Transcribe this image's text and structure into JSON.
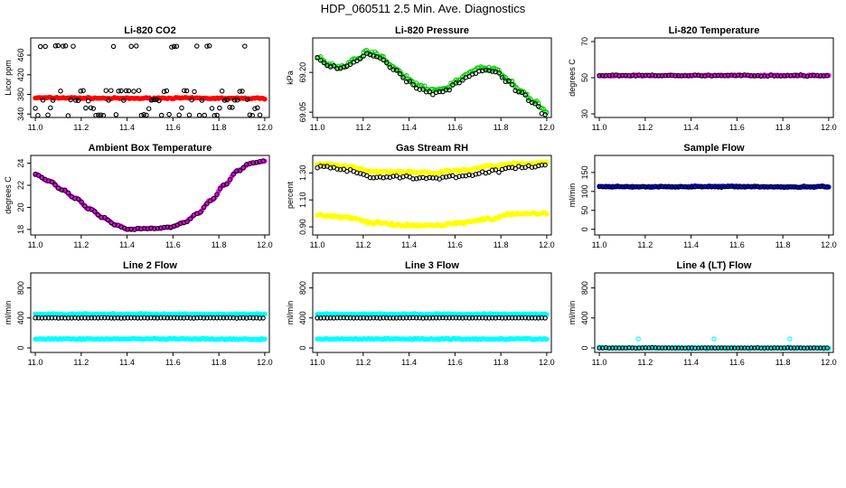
{
  "title": "HDP_060511  2.5 Min. Ave. Diagnostics",
  "colors": {
    "black": "#000000",
    "red": "#ff0000",
    "green": "#00cc00",
    "magenta": "#ff00ff",
    "yellow": "#ffff00",
    "blue": "#0000ff",
    "cyan": "#00ffff"
  },
  "chart_data": [
    {
      "type": "scatter",
      "title": "Li-820 CO2",
      "xlabel": "",
      "ylabel": "Licor ppm",
      "xlim": [
        11.0,
        12.0
      ],
      "ylim": [
        333,
        495
      ],
      "x_ticks": [
        "11.0",
        "11.2",
        "11.4",
        "11.6",
        "11.8",
        "12.0"
      ],
      "y_ticks": [
        340,
        380,
        420,
        460
      ],
      "series": [
        {
          "color": "red",
          "points": "dense",
          "shape": "constant",
          "values": [
            373,
            373,
            372.5,
            372,
            372,
            372.5,
            372.5,
            372,
            372,
            372
          ]
        },
        {
          "color": "black",
          "points": "sparse",
          "shape": "levels",
          "values": [
            338,
            352,
            368,
            387,
            478
          ]
        }
      ]
    },
    {
      "type": "scatter",
      "title": "Li-820 Pressure",
      "xlabel": "",
      "ylabel": "kPa",
      "xlim": [
        11.0,
        12.0
      ],
      "ylim": [
        69.03,
        69.33
      ],
      "x_ticks": [
        "11.0",
        "11.2",
        "11.4",
        "11.6",
        "11.8",
        "12.0"
      ],
      "y_ticks": [
        69.05,
        69.2
      ],
      "series": [
        {
          "color": "green",
          "values": [
            69.26,
            69.23,
            69.22,
            69.25,
            69.28,
            69.26,
            69.22,
            69.18,
            69.15,
            69.13,
            69.14,
            69.17,
            69.2,
            69.22,
            69.21,
            69.17,
            69.13,
            69.09,
            69.05
          ]
        },
        {
          "color": "black",
          "values": [
            69.25,
            69.22,
            69.22,
            69.24,
            69.27,
            69.25,
            69.21,
            69.17,
            69.14,
            69.12,
            69.13,
            69.16,
            69.19,
            69.21,
            69.2,
            69.16,
            69.12,
            69.08,
            69.04
          ]
        }
      ]
    },
    {
      "type": "scatter",
      "title": "Li-820 Temperature",
      "xlabel": "",
      "ylabel": "degrees C",
      "xlim": [
        11.0,
        12.0
      ],
      "ylim": [
        28,
        72
      ],
      "x_ticks": [
        "11.0",
        "11.2",
        "11.4",
        "11.6",
        "11.8",
        "12.0"
      ],
      "y_ticks": [
        30,
        50,
        70
      ],
      "series": [
        {
          "color": "magenta",
          "values": [
            51.2,
            51.2,
            51.2,
            51.2,
            51.2,
            51.2
          ]
        },
        {
          "color": "black",
          "values": [
            51.2,
            51.2,
            51.2,
            51.2,
            51.2,
            51.2
          ]
        }
      ]
    },
    {
      "type": "scatter",
      "title": "Ambient Box Temperature",
      "xlabel": "",
      "ylabel": "degrees C",
      "xlim": [
        11.0,
        12.0
      ],
      "ylim": [
        17.5,
        24.7
      ],
      "x_ticks": [
        "11.0",
        "11.2",
        "11.4",
        "11.6",
        "11.8",
        "12.0"
      ],
      "y_ticks": [
        18,
        20,
        22,
        24
      ],
      "series": [
        {
          "color": "magenta",
          "values": [
            23.0,
            22.4,
            21.6,
            20.8,
            19.9,
            19.1,
            18.4,
            18.0,
            18.1,
            18.1,
            18.2,
            18.6,
            19.4,
            20.6,
            22.0,
            23.3,
            24.0,
            24.2
          ]
        },
        {
          "color": "black",
          "values": [
            23.0,
            22.4,
            21.6,
            20.8,
            19.9,
            19.1,
            18.4,
            18.0,
            18.1,
            18.1,
            18.2,
            18.6,
            19.4,
            20.6,
            22.0,
            23.3,
            24.0,
            24.2
          ]
        }
      ]
    },
    {
      "type": "scatter",
      "title": "Gas Stream RH",
      "xlabel": "",
      "ylabel": "percent",
      "xlim": [
        11.0,
        12.0
      ],
      "ylim": [
        0.84,
        1.43
      ],
      "x_ticks": [
        "11.0",
        "11.2",
        "11.4",
        "11.6",
        "11.8",
        "12.0"
      ],
      "y_ticks": [
        0.9,
        1.1,
        1.3
      ],
      "series": [
        {
          "color": "yellow",
          "name": "",
          "values": [
            1.37,
            1.35,
            1.31,
            1.31,
            1.3,
            1.32,
            1.35,
            1.37,
            1.38
          ]
        },
        {
          "color": "black",
          "name": "",
          "values": [
            1.35,
            1.32,
            1.27,
            1.27,
            1.26,
            1.28,
            1.31,
            1.34,
            1.35
          ]
        },
        {
          "color": "yellow",
          "name": "",
          "values": [
            0.99,
            0.97,
            0.93,
            0.91,
            0.91,
            0.93,
            0.96,
            1.0,
            1.0
          ]
        }
      ]
    },
    {
      "type": "scatter",
      "title": "Sample Flow",
      "xlabel": "",
      "ylabel": "ml/min",
      "xlim": [
        11.0,
        12.0
      ],
      "ylim": [
        -15,
        195
      ],
      "x_ticks": [
        "11.0",
        "11.2",
        "11.4",
        "11.6",
        "11.8",
        "12.0"
      ],
      "y_ticks": [
        0,
        50,
        100,
        150
      ],
      "series": [
        {
          "color": "blue",
          "values": [
            113,
            112,
            113,
            113,
            112,
            113
          ]
        },
        {
          "color": "black",
          "values": [
            112,
            112,
            112,
            112,
            112,
            112
          ]
        }
      ]
    },
    {
      "type": "scatter",
      "title": "Line 2 Flow",
      "xlabel": "",
      "ylabel": "ml/min",
      "xlim": [
        11.0,
        12.0
      ],
      "ylim": [
        -60,
        1000
      ],
      "x_ticks": [
        "11.0",
        "11.2",
        "11.4",
        "11.6",
        "11.8",
        "12.0"
      ],
      "y_ticks": [
        0,
        400,
        800
      ],
      "series": [
        {
          "color": "cyan",
          "values": [
            450,
            450,
            450
          ]
        },
        {
          "color": "black",
          "values": [
            400,
            400,
            400
          ]
        },
        {
          "color": "cyan",
          "values": [
            120,
            120,
            115
          ]
        }
      ]
    },
    {
      "type": "scatter",
      "title": "Line 3 Flow",
      "xlabel": "",
      "ylabel": "ml/min",
      "xlim": [
        11.0,
        12.0
      ],
      "ylim": [
        -60,
        1000
      ],
      "x_ticks": [
        "11.0",
        "11.2",
        "11.4",
        "11.6",
        "11.8",
        "12.0"
      ],
      "y_ticks": [
        0,
        400,
        800
      ],
      "series": [
        {
          "color": "cyan",
          "values": [
            450,
            450,
            450
          ]
        },
        {
          "color": "black",
          "values": [
            400,
            400,
            400
          ]
        },
        {
          "color": "cyan",
          "values": [
            120,
            120,
            120
          ]
        }
      ]
    },
    {
      "type": "scatter",
      "title": "Line 4 (LT) Flow",
      "xlabel": "",
      "ylabel": "ml/min",
      "xlim": [
        11.0,
        12.0
      ],
      "ylim": [
        -60,
        1000
      ],
      "x_ticks": [
        "11.0",
        "11.2",
        "11.4",
        "11.6",
        "11.8",
        "12.0"
      ],
      "y_ticks": [
        0,
        400,
        800
      ],
      "series": [
        {
          "color": "cyan",
          "values": [
            0,
            0,
            0
          ]
        },
        {
          "color": "black",
          "values": [
            0,
            0,
            0
          ]
        },
        {
          "color": "cyan",
          "name": "",
          "spikes_x": [
            11.17,
            11.5,
            11.83
          ],
          "spike_value": 120
        }
      ]
    }
  ]
}
